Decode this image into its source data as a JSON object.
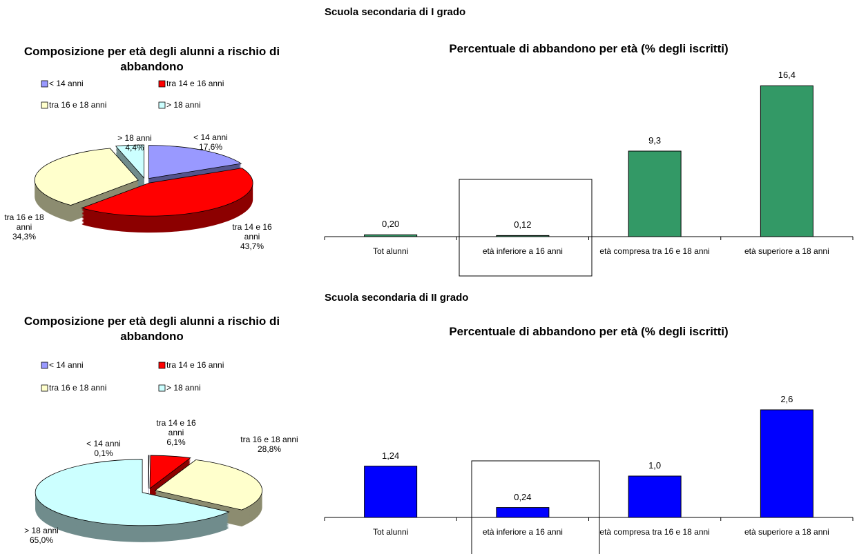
{
  "sections": [
    "Scuola secondaria di I grado",
    "Scuola secondaria di II grado"
  ],
  "chart_data": [
    {
      "type": "pie",
      "title": "Composizione per età degli alunni a rischio di abbandono",
      "categories": [
        "< 14 anni",
        "tra 14 e 16 anni",
        "tra 16 e 18 anni",
        "> 18 anni"
      ],
      "values": [
        17.6,
        43.7,
        34.3,
        4.4
      ],
      "value_labels": [
        "17,6%",
        "43,7%",
        "34,3%",
        "4,4%"
      ],
      "colors": [
        "#9999ff",
        "#ff0000",
        "#ffffcc",
        "#ccffff"
      ]
    },
    {
      "type": "bar",
      "title": "Percentuale di abbandono per età (% degli iscritti)",
      "categories": [
        "Tot alunni",
        "età inferiore a 16 anni",
        "età compresa tra 16 e 18 anni",
        "età superiore a 18 anni"
      ],
      "values": [
        0.2,
        0.12,
        9.3,
        16.4
      ],
      "value_labels": [
        "0,20",
        "0,12",
        "9,3",
        "16,4"
      ],
      "color": "#339966",
      "ylim": [
        0,
        18
      ]
    },
    {
      "type": "pie",
      "title": "Composizione per età degli alunni a rischio di abbandono",
      "categories": [
        "< 14 anni",
        "tra 14 e 16 anni",
        "tra 16 e 18 anni",
        "> 18 anni"
      ],
      "values": [
        0.1,
        6.1,
        28.8,
        65.0
      ],
      "value_labels": [
        "0,1%",
        "6,1%",
        "28,8%",
        "65,0%"
      ],
      "colors": [
        "#9999ff",
        "#ff0000",
        "#ffffcc",
        "#ccffff"
      ]
    },
    {
      "type": "bar",
      "title": "Percentuale di abbandono per età (% degli iscritti)",
      "categories": [
        "Tot alunni",
        "età inferiore a 16 anni",
        "età compresa tra 16 e 18 anni",
        "età superiore a 18 anni"
      ],
      "values": [
        1.24,
        0.24,
        1.0,
        2.6
      ],
      "value_labels": [
        "1,24",
        "0,24",
        "1,0",
        "2,6"
      ],
      "color": "#0000ff",
      "ylim": [
        0,
        3
      ]
    }
  ]
}
